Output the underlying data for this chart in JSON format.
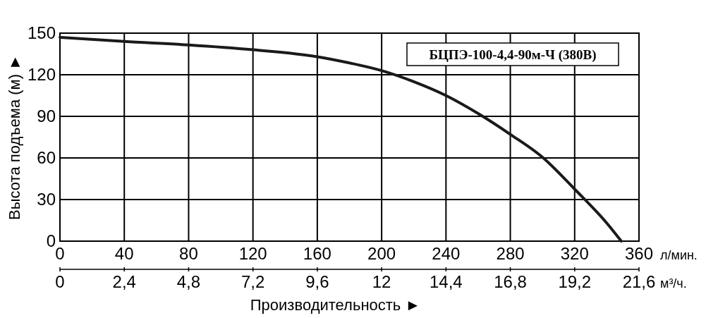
{
  "chart_data": {
    "type": "line",
    "title": "БЦПЭ-100-4,4-90м-Ч (380В)",
    "xlabel": "Производительность ►",
    "ylabel": "Высота подъема (м) ►",
    "annotations": [
      "л/мин.",
      "м³/ч."
    ],
    "x": [
      0,
      40,
      80,
      120,
      160,
      180,
      200,
      220,
      240,
      260,
      280,
      300,
      320,
      340,
      349
    ],
    "series": [
      {
        "color": "#1a1a1a",
        "values": [
          147,
          144,
          141.5,
          138,
          133,
          128.5,
          123,
          115,
          105,
          92,
          77,
          60.5,
          37.5,
          13,
          0
        ]
      }
    ],
    "xlim": [
      0,
      360
    ],
    "xticks": [
      0,
      40,
      80,
      120,
      160,
      200,
      240,
      280,
      320,
      360
    ],
    "x2lim": [
      0,
      21.6
    ],
    "x2ticks": [
      0,
      {
        "value": 2.4,
        "label": "2,4"
      },
      {
        "value": 4.8,
        "label": "4,8"
      },
      {
        "value": 7.2,
        "label": "7,2"
      },
      {
        "value": 9.6,
        "label": "9,6"
      },
      12,
      {
        "value": 14.4,
        "label": "14,4"
      },
      {
        "value": 16.8,
        "label": "16,8"
      },
      {
        "value": 19.2,
        "label": "19,2"
      },
      {
        "value": 21.6,
        "label": "21,6"
      }
    ],
    "ylim": [
      0,
      150
    ],
    "yticks": [
      0,
      30,
      60,
      90,
      120,
      150
    ],
    "grid": true,
    "marker": "none",
    "line_style": "solid"
  }
}
